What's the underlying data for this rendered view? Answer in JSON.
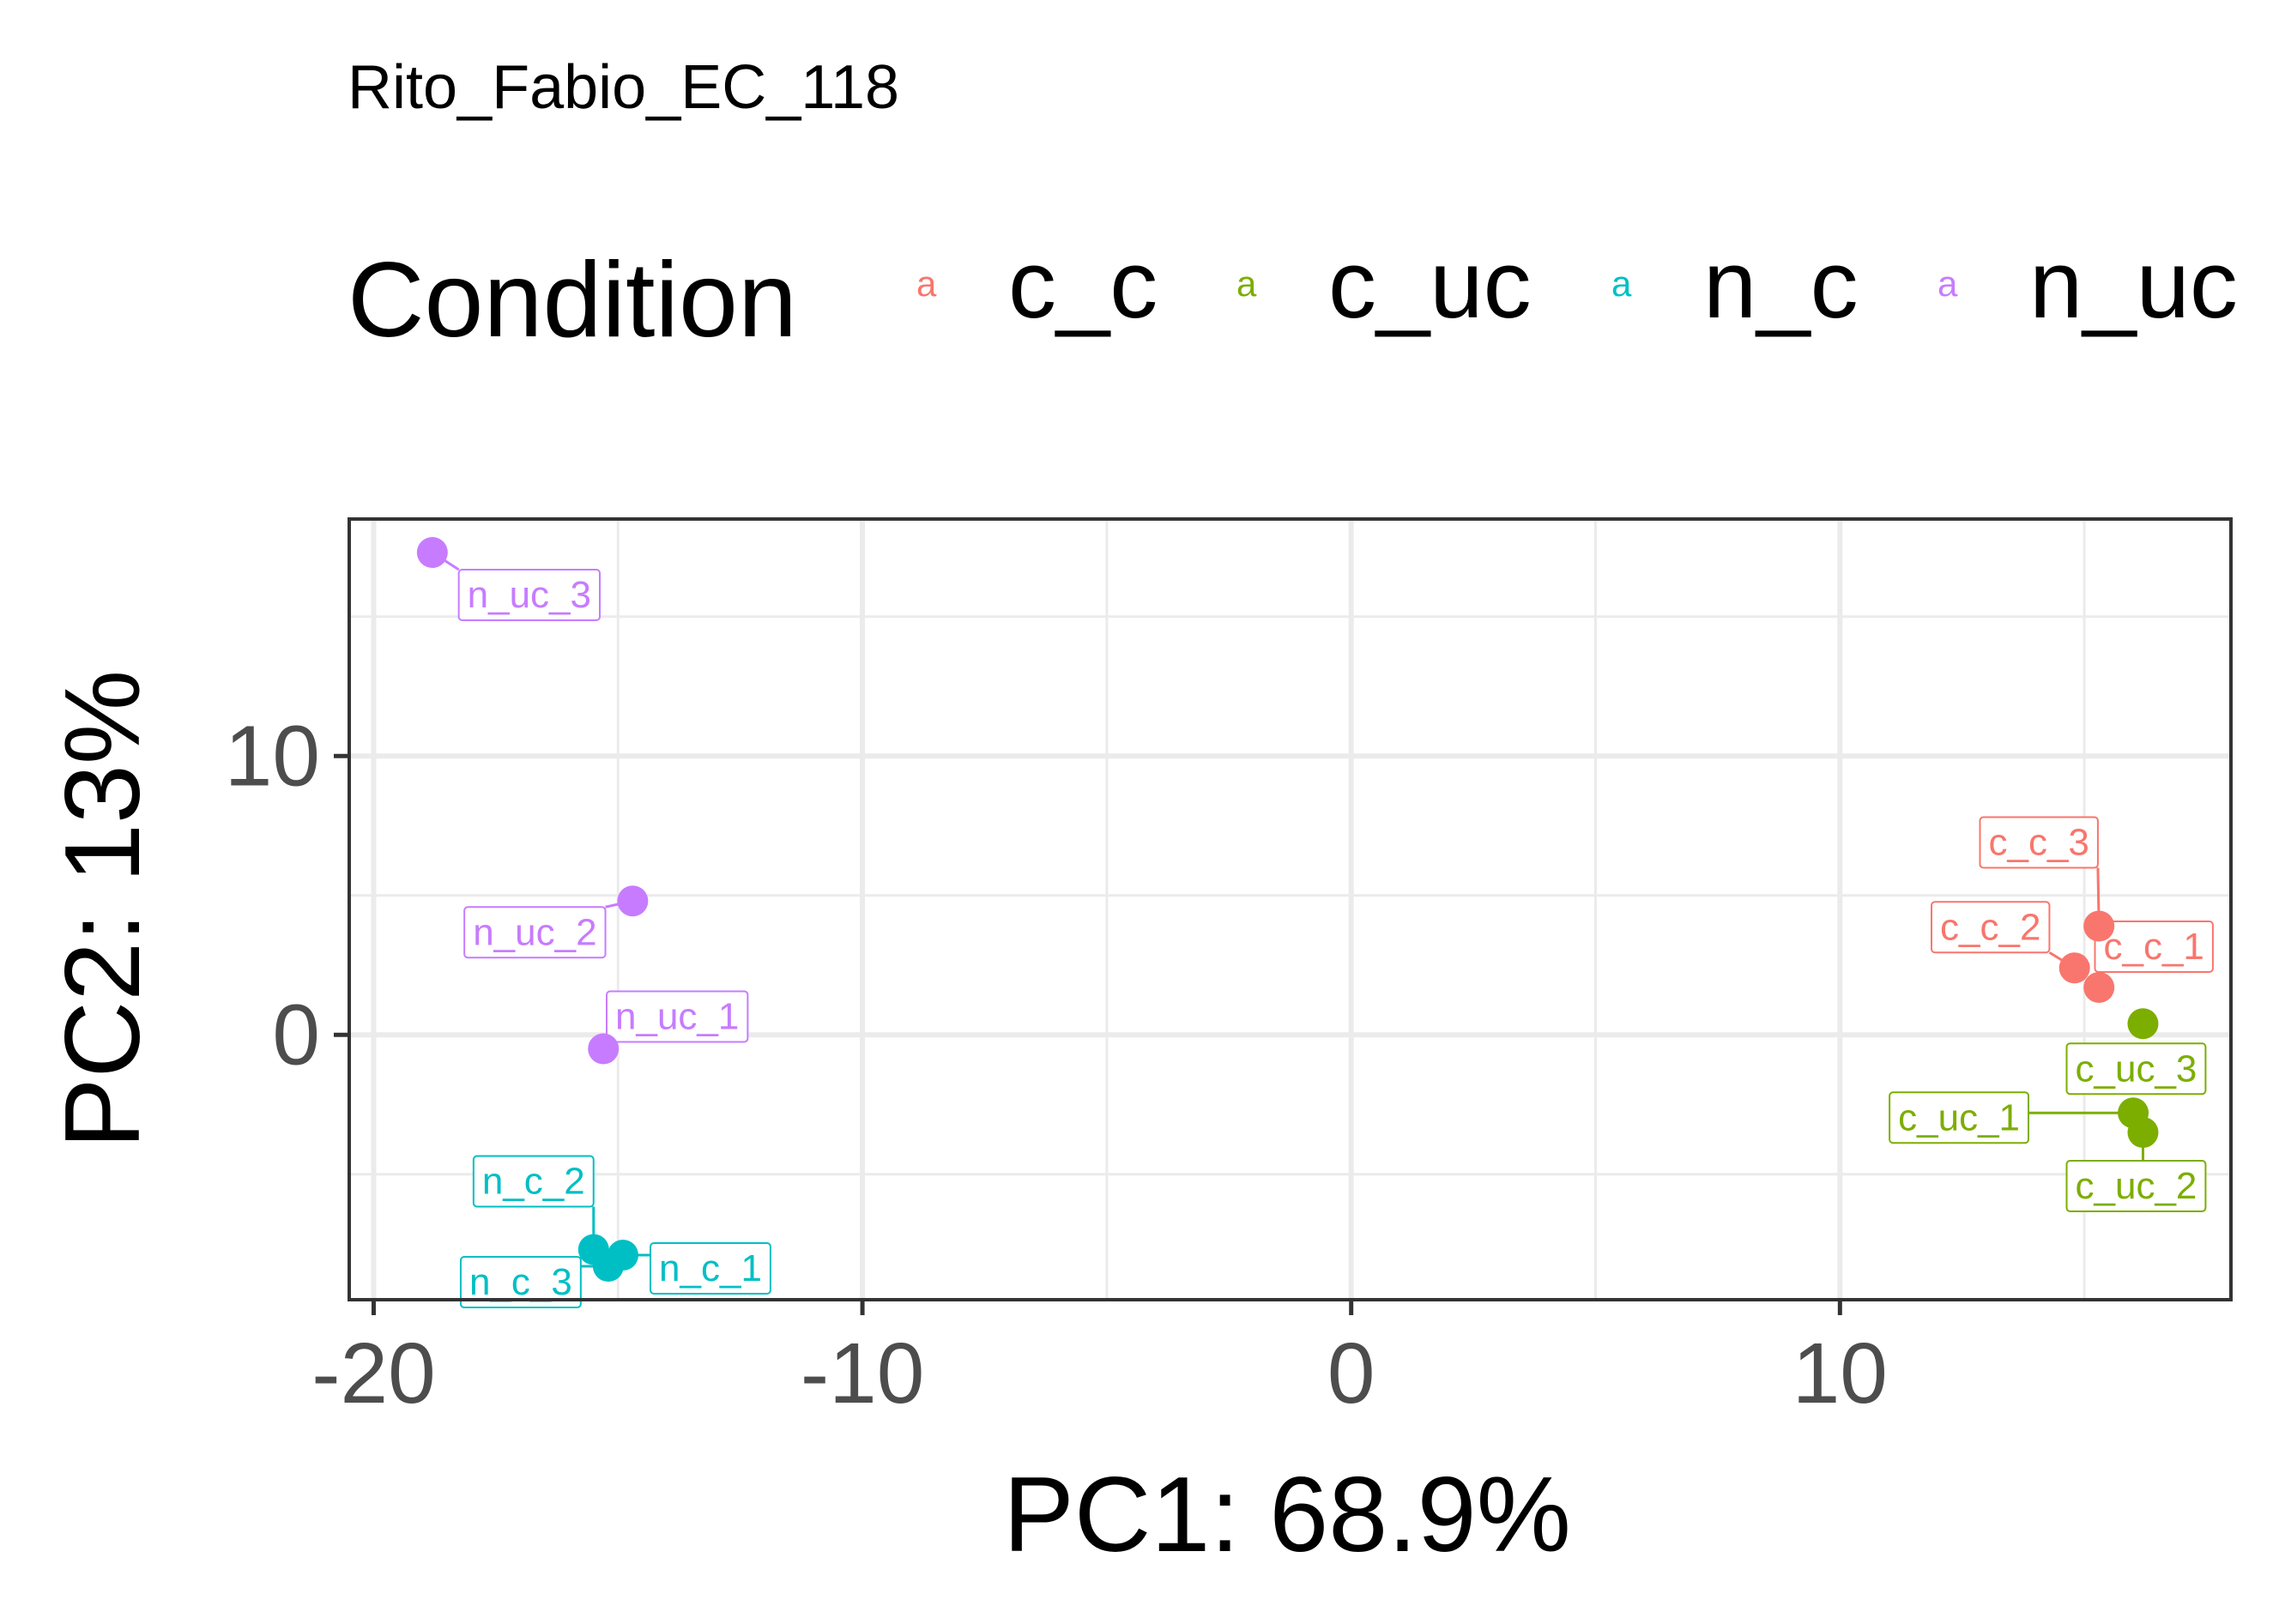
{
  "chart_data": {
    "type": "scatter",
    "title": "Rito_Fabio_EC_118",
    "xlabel": "PC1: 68.9%",
    "ylabel": "PC2: 13%",
    "xlim": [
      -20.5,
      18
    ],
    "ylim": [
      -9.5,
      18.5
    ],
    "x_ticks": [
      -20,
      -10,
      0,
      10
    ],
    "x_tick_labels": [
      "-20",
      "-10",
      "0",
      "10"
    ],
    "y_ticks": [
      0,
      10
    ],
    "y_tick_labels": [
      "0",
      "10"
    ],
    "grid": true,
    "legend": {
      "title": "Condition",
      "placement": "top",
      "key_symbol": "a",
      "entries": [
        {
          "name": "c_c",
          "color": "#F8766D"
        },
        {
          "name": "c_uc",
          "color": "#7CAE00"
        },
        {
          "name": "n_c",
          "color": "#00BFC4"
        },
        {
          "name": "n_uc",
          "color": "#C77CFF"
        }
      ]
    },
    "series": [
      {
        "name": "c_c",
        "color": "#F8766D",
        "points": [
          {
            "label": "c_c_1",
            "x": 15.3,
            "y": 1.7
          },
          {
            "label": "c_c_2",
            "x": 14.8,
            "y": 2.4
          },
          {
            "label": "c_c_3",
            "x": 15.3,
            "y": 3.9
          }
        ]
      },
      {
        "name": "c_uc",
        "color": "#7CAE00",
        "points": [
          {
            "label": "c_uc_1",
            "x": 16.0,
            "y": -2.8
          },
          {
            "label": "c_uc_2",
            "x": 16.2,
            "y": -3.5
          },
          {
            "label": "c_uc_3",
            "x": 16.2,
            "y": 0.4
          }
        ]
      },
      {
        "name": "n_c",
        "color": "#00BFC4",
        "points": [
          {
            "label": "n_c_1",
            "x": -14.9,
            "y": -7.9
          },
          {
            "label": "n_c_2",
            "x": -15.5,
            "y": -7.7
          },
          {
            "label": "n_c_3",
            "x": -15.2,
            "y": -8.3
          }
        ]
      },
      {
        "name": "n_uc",
        "color": "#C77CFF",
        "points": [
          {
            "label": "n_uc_1",
            "x": -15.3,
            "y": -0.5
          },
          {
            "label": "n_uc_2",
            "x": -14.7,
            "y": 4.8
          },
          {
            "label": "n_uc_3",
            "x": -18.8,
            "y": 17.3
          }
        ]
      }
    ]
  }
}
